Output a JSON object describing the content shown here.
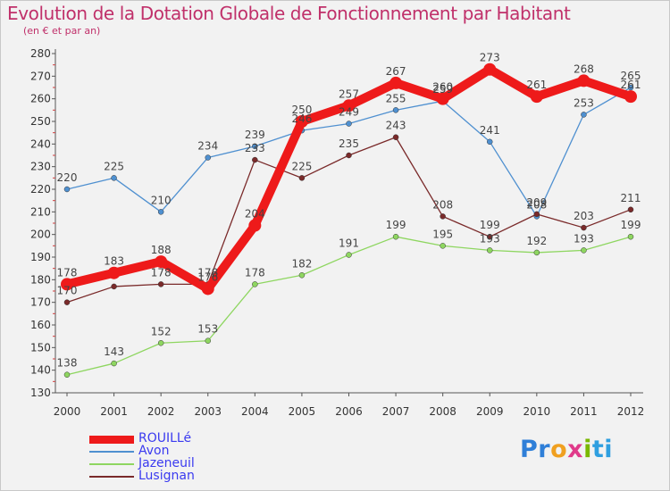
{
  "header": {
    "title": "Evolution de la Dotation Globale de Fonctionnement par Habitant",
    "subtitle": "(en € et par an)"
  },
  "logo": {
    "text": "Proxiti",
    "parts": [
      "Pr",
      "o",
      "x",
      "i",
      "ti"
    ]
  },
  "chart_data": {
    "type": "line",
    "x": [
      "2000",
      "2001",
      "2002",
      "2003",
      "2004",
      "2005",
      "2006",
      "2007",
      "2008",
      "2009",
      "2010",
      "2011",
      "2012"
    ],
    "ylim": [
      130,
      280
    ],
    "yticks": [
      130,
      140,
      150,
      160,
      170,
      180,
      190,
      200,
      210,
      220,
      230,
      240,
      250,
      260,
      270,
      280
    ],
    "grid": false,
    "legend_position": "bottom-left",
    "series": [
      {
        "name": "Avon",
        "color": "#4f90d0",
        "values": [
          220,
          225,
          210,
          234,
          239,
          246,
          249,
          255,
          259,
          241,
          208,
          253,
          265
        ],
        "labels": [
          "220",
          "225",
          "210",
          "234",
          "239",
          "246",
          "249",
          "255",
          "259",
          "241",
          "208",
          "253",
          "265"
        ]
      },
      {
        "name": "Jazeneuil",
        "color": "#8ed660",
        "values": [
          138,
          143,
          152,
          153,
          178,
          182,
          191,
          199,
          195,
          193,
          192,
          193,
          199
        ],
        "labels": [
          "138",
          "143",
          "152",
          "153",
          "178",
          "182",
          "191",
          "199",
          "195",
          "193",
          "192",
          "193",
          "199"
        ]
      },
      {
        "name": "Lusignan",
        "color": "#7a2a2a",
        "values": [
          170,
          177,
          178,
          178,
          233,
          225,
          235,
          243,
          208,
          199,
          209,
          203,
          211
        ],
        "labels": [
          "170",
          "",
          "178",
          "178",
          "233",
          "225",
          "235",
          "243",
          "208",
          "199",
          "209",
          "203",
          "211"
        ]
      },
      {
        "name": "ROUILLé",
        "color": "#ee1a1a",
        "values": [
          178,
          183,
          188,
          176,
          204,
          250,
          257,
          267,
          260,
          273,
          261,
          268,
          261
        ],
        "labels": [
          "178",
          "183",
          "188",
          "176",
          "204",
          "250",
          "257",
          "267",
          "260",
          "273",
          "261",
          "268",
          "261"
        ]
      }
    ]
  }
}
